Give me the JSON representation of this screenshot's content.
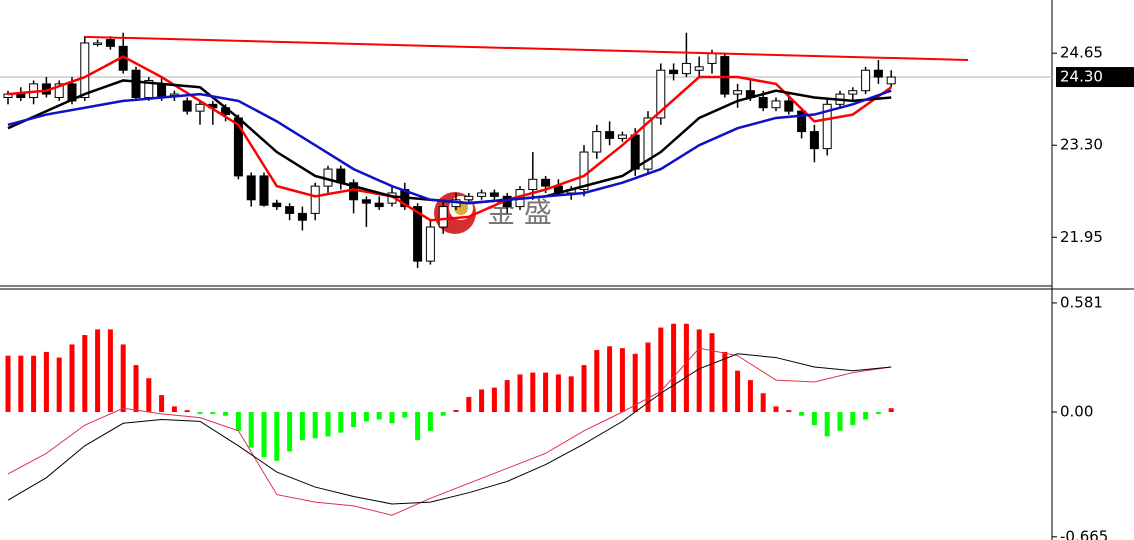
{
  "chart_data": [
    {
      "type": "candlestick",
      "open": [
        24.0,
        24.05,
        24.0,
        24.2,
        24.0,
        24.2,
        24.0,
        24.8,
        24.85,
        24.75,
        24.4,
        24.0,
        24.2,
        24.05,
        23.95,
        23.8,
        23.9,
        23.85,
        23.7,
        22.85,
        22.85,
        22.45,
        22.4,
        22.3,
        22.3,
        22.7,
        22.95,
        22.75,
        22.5,
        22.45,
        22.45,
        22.65,
        22.4,
        21.6,
        22.1,
        22.4,
        22.5,
        22.55,
        22.6,
        22.55,
        22.4,
        22.65,
        22.8,
        22.7,
        22.6,
        22.65,
        23.2,
        23.5,
        23.4,
        23.45,
        22.95,
        23.7,
        24.4,
        24.35,
        24.4,
        24.5,
        24.6,
        24.05,
        24.1,
        24.0,
        23.85,
        23.95,
        23.8,
        23.5,
        23.25,
        23.9,
        24.05,
        24.1,
        24.4,
        24.2
      ],
      "high": [
        24.1,
        24.15,
        24.25,
        24.3,
        24.25,
        24.3,
        24.9,
        24.85,
        24.9,
        24.95,
        24.45,
        24.3,
        24.3,
        24.1,
        24.0,
        23.95,
        23.95,
        23.9,
        23.75,
        22.9,
        22.9,
        22.5,
        22.45,
        22.4,
        22.75,
        23.0,
        23.0,
        22.8,
        22.55,
        22.55,
        22.7,
        22.75,
        22.45,
        22.2,
        22.5,
        22.6,
        22.6,
        22.65,
        22.65,
        22.6,
        22.7,
        23.2,
        22.85,
        22.8,
        22.7,
        23.3,
        23.6,
        23.65,
        23.5,
        23.55,
        23.8,
        24.5,
        24.5,
        24.95,
        24.6,
        24.7,
        24.65,
        24.2,
        24.25,
        24.1,
        24.0,
        24.05,
        23.85,
        23.6,
        24.0,
        24.1,
        24.15,
        24.45,
        24.55,
        24.4
      ],
      "low": [
        23.9,
        23.95,
        23.9,
        24.0,
        23.95,
        23.9,
        23.95,
        24.75,
        24.7,
        24.35,
        23.95,
        23.95,
        23.95,
        23.95,
        23.75,
        23.6,
        23.6,
        23.65,
        22.8,
        22.4,
        22.4,
        22.35,
        22.2,
        22.05,
        22.2,
        22.6,
        22.65,
        22.3,
        22.1,
        22.35,
        22.4,
        22.35,
        21.5,
        21.55,
        22.0,
        22.35,
        22.45,
        22.5,
        22.5,
        22.3,
        22.35,
        22.5,
        22.6,
        22.55,
        22.5,
        22.55,
        23.1,
        23.3,
        23.35,
        22.85,
        22.9,
        23.6,
        24.25,
        24.3,
        24.3,
        24.35,
        24.0,
        23.85,
        23.95,
        23.8,
        23.8,
        23.75,
        23.4,
        23.05,
        23.15,
        23.85,
        23.95,
        24.05,
        24.2,
        24.15
      ],
      "close": [
        24.05,
        24.0,
        24.2,
        24.05,
        24.2,
        23.95,
        24.8,
        24.8,
        24.75,
        24.4,
        24.0,
        24.25,
        24.0,
        24.05,
        23.8,
        23.9,
        23.85,
        23.75,
        22.85,
        22.5,
        22.42,
        22.4,
        22.3,
        22.2,
        22.7,
        22.95,
        22.75,
        22.5,
        22.45,
        22.4,
        22.6,
        22.4,
        21.6,
        22.1,
        22.4,
        22.5,
        22.55,
        22.6,
        22.55,
        22.4,
        22.65,
        22.8,
        22.7,
        22.6,
        22.65,
        23.2,
        23.5,
        23.4,
        23.45,
        22.95,
        23.7,
        24.4,
        24.35,
        24.5,
        24.45,
        24.65,
        24.05,
        24.1,
        24.0,
        23.85,
        23.95,
        23.8,
        23.5,
        23.25,
        23.9,
        24.05,
        24.1,
        24.4,
        24.3,
        24.3
      ],
      "series": [
        {
          "color": "#ff0000",
          "x": [
            6,
            75
          ],
          "values": [
            24.89,
            24.55
          ]
        },
        {
          "color": "#ff0000",
          "x": [
            0,
            3,
            6,
            9,
            12,
            15,
            18,
            21,
            24,
            27,
            30,
            33,
            36,
            39,
            42,
            45,
            48,
            51,
            54,
            57,
            60,
            63,
            66,
            69
          ],
          "values": [
            24.05,
            24.1,
            24.3,
            24.6,
            24.3,
            23.95,
            23.6,
            22.7,
            22.55,
            22.65,
            22.55,
            22.2,
            22.25,
            22.5,
            22.65,
            22.85,
            23.3,
            23.8,
            24.3,
            24.3,
            24.2,
            23.65,
            23.75,
            24.15
          ]
        },
        {
          "color": "#000000",
          "x": [
            0,
            3,
            6,
            9,
            12,
            15,
            18,
            21,
            24,
            27,
            30,
            33,
            36,
            39,
            42,
            45,
            48,
            51,
            54,
            57,
            60,
            63,
            66,
            69
          ],
          "values": [
            23.55,
            23.8,
            24.05,
            24.25,
            24.2,
            24.15,
            23.7,
            23.2,
            22.85,
            22.7,
            22.55,
            22.5,
            22.45,
            22.5,
            22.55,
            22.7,
            22.85,
            23.2,
            23.7,
            23.95,
            24.1,
            24.0,
            23.95,
            24.0
          ]
        },
        {
          "color": "#1010c8",
          "x": [
            0,
            3,
            6,
            9,
            12,
            15,
            18,
            21,
            24,
            27,
            30,
            33,
            36,
            39,
            42,
            45,
            48,
            51,
            54,
            57,
            60,
            63,
            66,
            69
          ],
          "values": [
            23.6,
            23.75,
            23.85,
            23.95,
            24.0,
            24.05,
            23.95,
            23.65,
            23.3,
            22.95,
            22.7,
            22.5,
            22.45,
            22.5,
            22.55,
            22.6,
            22.75,
            22.95,
            23.3,
            23.55,
            23.7,
            23.75,
            23.9,
            24.1
          ]
        }
      ],
      "price_marker": {
        "value": 24.3,
        "label": "24.30"
      },
      "watermark": "金 盛",
      "ylim": [
        21.25,
        25.43
      ],
      "yticks": [
        24.65,
        {
          "value": 23.3,
          "label": "23.30"
        },
        21.95
      ]
    },
    {
      "type": "macd",
      "values": [
        0.3,
        0.3,
        0.3,
        0.32,
        0.29,
        0.36,
        0.41,
        0.44,
        0.44,
        0.36,
        0.25,
        0.18,
        0.09,
        0.03,
        0.01,
        -0.01,
        -0.01,
        -0.02,
        -0.1,
        -0.19,
        -0.24,
        -0.26,
        -0.21,
        -0.15,
        -0.14,
        -0.13,
        -0.11,
        -0.08,
        -0.05,
        -0.04,
        -0.06,
        -0.03,
        -0.15,
        -0.1,
        -0.02,
        0.01,
        0.08,
        0.12,
        0.13,
        0.17,
        0.2,
        0.21,
        0.21,
        0.2,
        0.19,
        0.25,
        0.33,
        0.35,
        0.34,
        0.31,
        0.37,
        0.45,
        0.47,
        0.47,
        0.44,
        0.42,
        0.32,
        0.22,
        0.17,
        0.1,
        0.03,
        0.01,
        -0.02,
        -0.07,
        -0.13,
        -0.1,
        -0.07,
        -0.04,
        -0.01,
        0.02
      ],
      "positive_color": "#ff0000",
      "negative_color": "#00ff00",
      "series": [
        {
          "color": "#e0304a",
          "x": [
            0,
            3,
            6,
            9,
            12,
            15,
            18,
            21,
            24,
            27,
            30,
            33,
            36,
            39,
            42,
            45,
            48,
            51,
            54,
            57,
            60,
            63,
            66,
            69
          ],
          "values": [
            -0.33,
            -0.22,
            -0.07,
            0.02,
            -0.01,
            -0.03,
            -0.1,
            -0.44,
            -0.48,
            -0.5,
            -0.55,
            -0.46,
            -0.38,
            -0.3,
            -0.22,
            -0.1,
            0.0,
            0.11,
            0.34,
            0.3,
            0.17,
            0.16,
            0.21,
            0.24
          ]
        },
        {
          "color": "#000000",
          "x": [
            0,
            3,
            6,
            9,
            12,
            15,
            18,
            21,
            24,
            27,
            30,
            33,
            36,
            39,
            42,
            45,
            48,
            51,
            54,
            57,
            60,
            63,
            66,
            69
          ],
          "values": [
            -0.47,
            -0.35,
            -0.18,
            -0.06,
            -0.04,
            -0.05,
            -0.18,
            -0.32,
            -0.4,
            -0.45,
            -0.49,
            -0.48,
            -0.43,
            -0.37,
            -0.28,
            -0.17,
            -0.05,
            0.1,
            0.23,
            0.31,
            0.29,
            0.24,
            0.22,
            0.24
          ]
        }
      ],
      "ylim": [
        -0.682,
        0.65
      ],
      "yticks": [
        0.581,
        {
          "value": 0,
          "label": "0.00"
        },
        -0.665
      ]
    }
  ]
}
